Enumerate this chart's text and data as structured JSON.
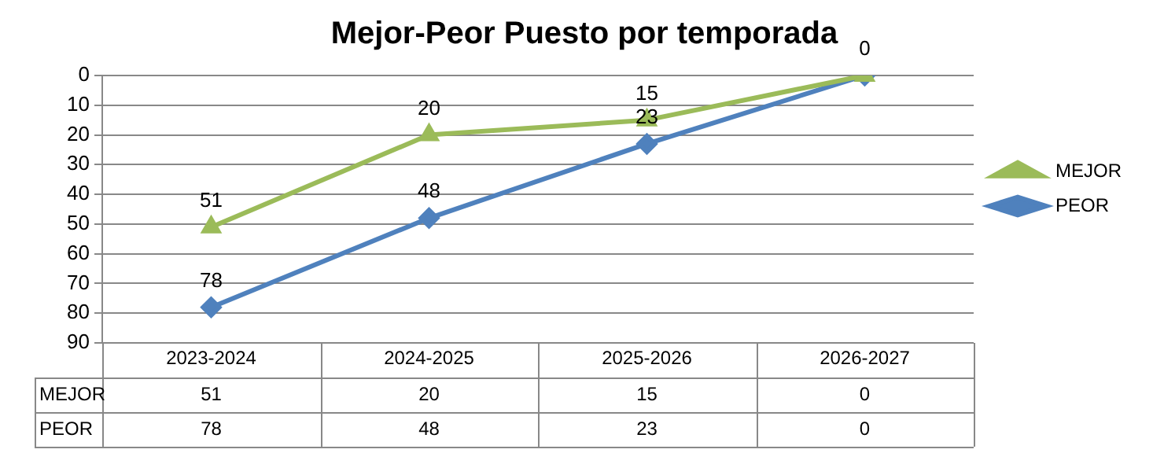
{
  "chart_data": {
    "type": "line",
    "title": "Mejor-Peor Puesto por temporada",
    "categories": [
      "2023-2024",
      "2024-2025",
      "2025-2026",
      "2026-2027"
    ],
    "series": [
      {
        "name": "MEJOR",
        "color": "#9bbb59",
        "values": [
          51,
          20,
          15,
          0
        ],
        "marker": "triangle"
      },
      {
        "name": "PEOR",
        "color": "#4f81bd",
        "values": [
          78,
          48,
          23,
          0
        ],
        "marker": "diamond"
      }
    ],
    "annotations": [
      {
        "text": "51",
        "x": "2023-2024",
        "y": 51
      },
      {
        "text": "20",
        "x": "2024-2025",
        "y": 20
      },
      {
        "text": "15",
        "x": "2025-2026",
        "y": 15
      },
      {
        "text": "78",
        "x": "2023-2024",
        "y": 78
      },
      {
        "text": "48",
        "x": "2024-2025",
        "y": 48
      },
      {
        "text": "23",
        "x": "2025-2026",
        "y": 23
      },
      {
        "text": "0",
        "x": "2026-2027",
        "y": 0
      }
    ],
    "ylim": [
      90,
      0
    ],
    "yticks": [
      0,
      10,
      20,
      30,
      40,
      50,
      60,
      70,
      80,
      90
    ],
    "grid": "y",
    "legend": "right",
    "data_labels": true
  }
}
